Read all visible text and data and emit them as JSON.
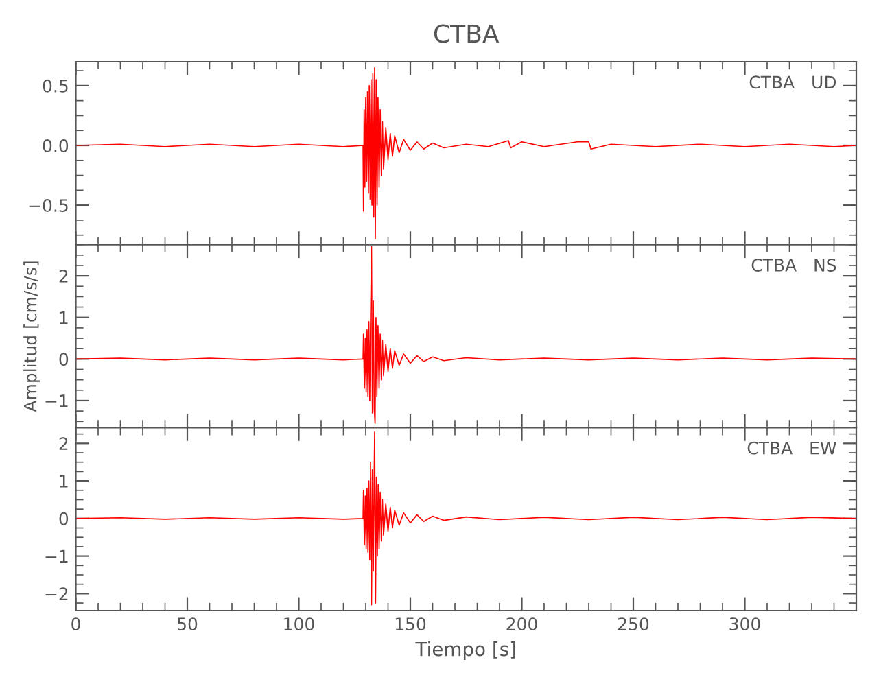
{
  "chart_data": [
    {
      "type": "line",
      "title": "CTBA",
      "annotations": [
        "CTBA   UD"
      ],
      "xlim": [
        0,
        350
      ],
      "ylim": [
        -0.83,
        0.7
      ],
      "yticks": [
        {
          "value": -0.5,
          "label": "−0.5"
        },
        {
          "value": 0,
          "label": "0.0"
        },
        0.5
      ],
      "tick_labels": "y",
      "grid": false,
      "x": [
        0,
        20,
        40,
        60,
        80,
        100,
        120,
        128.8,
        129,
        129.3,
        129.6,
        130,
        130.4,
        130.8,
        131.2,
        131.6,
        132,
        132.4,
        132.8,
        133.2,
        133.6,
        134,
        134.3,
        134.7,
        135.1,
        135.5,
        136,
        136.5,
        137,
        137.5,
        138,
        139,
        140,
        141,
        142,
        143,
        145,
        147,
        150,
        153,
        156,
        160,
        165,
        175,
        185,
        194,
        195,
        200,
        210,
        225,
        230,
        231,
        240,
        260,
        280,
        300,
        320,
        340,
        350
      ],
      "series": [
        {
          "color": "#ff0000",
          "values": [
            0.0,
            0.01,
            -0.01,
            0.01,
            -0.01,
            0.01,
            -0.01,
            0.0,
            -0.55,
            0.3,
            -0.35,
            0.4,
            -0.3,
            0.45,
            -0.4,
            0.5,
            -0.45,
            0.55,
            -0.5,
            0.6,
            -0.6,
            0.65,
            -0.78,
            0.55,
            -0.5,
            0.4,
            -0.35,
            0.3,
            -0.25,
            0.2,
            -0.2,
            0.15,
            -0.12,
            0.1,
            -0.09,
            0.08,
            -0.06,
            0.05,
            -0.04,
            0.03,
            -0.03,
            0.02,
            -0.02,
            0.01,
            -0.01,
            0.04,
            -0.02,
            0.03,
            -0.01,
            0.03,
            0.03,
            -0.03,
            0.01,
            -0.01,
            0.01,
            -0.01,
            0.01,
            -0.01,
            0.0
          ]
        }
      ]
    },
    {
      "type": "line",
      "ylabel": "Amplitud [cm/s/s]",
      "annotations": [
        "CTBA   NS"
      ],
      "xlim": [
        0,
        350
      ],
      "ylim": [
        -1.65,
        2.75
      ],
      "yticks": [
        {
          "value": -1,
          "label": "−1"
        },
        0,
        1,
        2
      ],
      "tick_labels": "y",
      "grid": false,
      "x": [
        0,
        20,
        40,
        60,
        80,
        100,
        120,
        128.8,
        129,
        129.4,
        129.8,
        130.2,
        130.6,
        131,
        131.4,
        131.8,
        132.2,
        132.6,
        133,
        133.4,
        133.8,
        134.2,
        134.6,
        135,
        135.5,
        136,
        136.5,
        137,
        137.5,
        138,
        139,
        140,
        141,
        142,
        143,
        145,
        147,
        150,
        153,
        156,
        160,
        165,
        175,
        190,
        210,
        230,
        250,
        270,
        290,
        310,
        330,
        350
      ],
      "series": [
        {
          "color": "#ff0000",
          "values": [
            0.0,
            0.02,
            -0.02,
            0.02,
            -0.02,
            0.02,
            -0.02,
            0.0,
            0.6,
            -0.7,
            0.5,
            -0.8,
            0.7,
            -0.9,
            0.9,
            -1.0,
            1.1,
            2.7,
            -1.3,
            1.4,
            -1.2,
            -1.55,
            1.0,
            -0.9,
            0.8,
            -0.7,
            0.6,
            -0.5,
            0.45,
            -0.4,
            0.35,
            -0.3,
            0.25,
            -0.22,
            0.2,
            -0.15,
            0.12,
            -0.1,
            0.08,
            -0.06,
            0.05,
            -0.04,
            0.03,
            -0.02,
            0.02,
            -0.02,
            0.02,
            -0.02,
            0.02,
            -0.02,
            0.02,
            0.0
          ]
        }
      ]
    },
    {
      "type": "line",
      "xlabel": "Tiempo [s]",
      "annotations": [
        "CTBA   EW"
      ],
      "xlim": [
        0,
        350
      ],
      "ylim": [
        -2.45,
        2.42
      ],
      "xticks": [
        0,
        50,
        100,
        150,
        200,
        250,
        300
      ],
      "yticks": [
        {
          "value": -2,
          "label": "−2"
        },
        {
          "value": -1,
          "label": "−1"
        },
        0,
        1,
        2
      ],
      "grid": false,
      "x": [
        0,
        20,
        40,
        60,
        80,
        100,
        120,
        128.8,
        129,
        129.4,
        129.8,
        130.2,
        130.6,
        131,
        131.4,
        131.8,
        132.2,
        132.6,
        133,
        133.4,
        133.8,
        134,
        134.4,
        134.8,
        135.2,
        135.6,
        136,
        136.5,
        137,
        137.5,
        138,
        139,
        140,
        141,
        142,
        143,
        145,
        147,
        150,
        153,
        156,
        160,
        165,
        175,
        190,
        210,
        230,
        250,
        270,
        290,
        310,
        330,
        350
      ],
      "series": [
        {
          "color": "#ff0000",
          "values": [
            0.0,
            0.02,
            -0.02,
            0.02,
            -0.02,
            0.02,
            -0.02,
            0.0,
            0.75,
            -0.7,
            0.6,
            -0.8,
            0.8,
            -0.9,
            1.0,
            -1.1,
            1.5,
            -2.3,
            1.3,
            -1.4,
            1.2,
            2.3,
            -2.25,
            1.1,
            -1.0,
            0.9,
            -0.8,
            0.7,
            -0.6,
            0.5,
            -0.45,
            0.4,
            -0.35,
            0.3,
            -0.25,
            0.22,
            -0.18,
            0.15,
            -0.12,
            0.1,
            -0.08,
            0.06,
            -0.05,
            0.04,
            -0.03,
            0.03,
            -0.03,
            0.03,
            -0.03,
            0.03,
            -0.03,
            0.03,
            0.0
          ]
        }
      ]
    }
  ]
}
